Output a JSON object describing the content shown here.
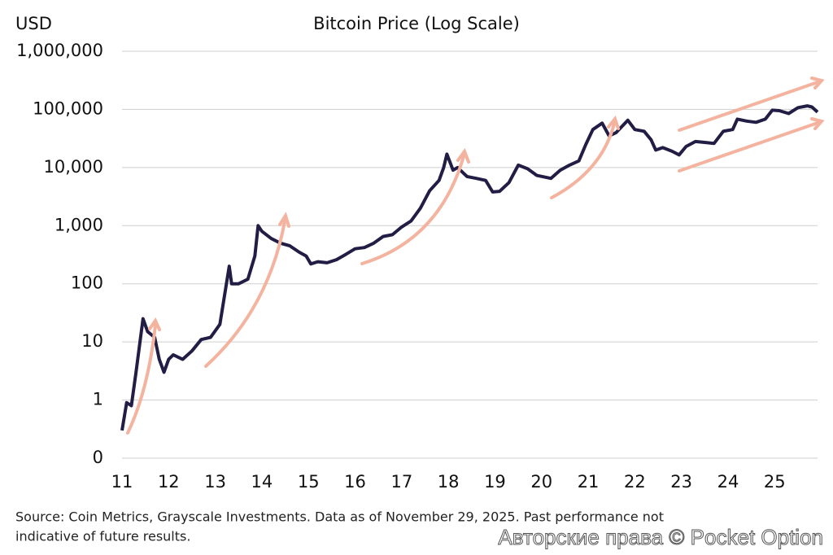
{
  "chart_data": {
    "type": "line",
    "title": "Bitcoin Price (Log Scale)",
    "y_label": "USD",
    "log_y": true,
    "grid": true,
    "xlim": [
      11,
      25.92
    ],
    "xticks": [
      11,
      12,
      13,
      14,
      15,
      16,
      17,
      18,
      19,
      20,
      21,
      22,
      23,
      24,
      25
    ],
    "ylim": [
      0.1,
      1000000
    ],
    "yticks": [
      {
        "value": 0.1,
        "label": "0"
      },
      1,
      10,
      100,
      {
        "value": 1000,
        "label": "1,000"
      },
      {
        "value": 10000,
        "label": "10,000"
      },
      {
        "value": 100000,
        "label": "100,000"
      },
      {
        "value": 1000000,
        "label": "1,000,000"
      }
    ],
    "series": [
      {
        "name": "Bitcoin Price",
        "color": "#221d45",
        "x": [
          11.0,
          11.1,
          11.2,
          11.3,
          11.45,
          11.55,
          11.7,
          11.8,
          11.9,
          12.0,
          12.1,
          12.3,
          12.5,
          12.7,
          12.9,
          13.1,
          13.3,
          13.35,
          13.5,
          13.7,
          13.85,
          13.92,
          14.0,
          14.2,
          14.4,
          14.6,
          14.8,
          14.95,
          15.05,
          15.2,
          15.4,
          15.6,
          15.8,
          16.0,
          16.2,
          16.4,
          16.6,
          16.8,
          17.0,
          17.2,
          17.4,
          17.6,
          17.8,
          17.9,
          17.97,
          18.1,
          18.2,
          18.4,
          18.6,
          18.8,
          18.95,
          19.1,
          19.3,
          19.5,
          19.7,
          19.9,
          20.2,
          20.4,
          20.6,
          20.8,
          20.95,
          21.1,
          21.3,
          21.45,
          21.6,
          21.85,
          22.0,
          22.2,
          22.35,
          22.45,
          22.6,
          22.8,
          22.95,
          23.1,
          23.3,
          23.5,
          23.7,
          23.9,
          24.1,
          24.2,
          24.4,
          24.6,
          24.8,
          24.95,
          25.1,
          25.3,
          25.5,
          25.7,
          25.8,
          25.92
        ],
        "values": [
          0.3,
          0.9,
          0.8,
          3,
          25,
          15,
          12,
          5,
          3,
          5,
          6,
          5,
          7,
          11,
          12,
          20,
          200,
          100,
          100,
          120,
          300,
          1000,
          800,
          600,
          500,
          450,
          350,
          300,
          220,
          240,
          230,
          260,
          320,
          400,
          420,
          500,
          650,
          700,
          950,
          1200,
          2000,
          4000,
          6000,
          10000,
          17000,
          9000,
          10000,
          7000,
          6500,
          6000,
          3800,
          3900,
          5500,
          11000,
          9500,
          7300,
          6500,
          9000,
          11000,
          13000,
          25000,
          45000,
          58000,
          35000,
          40000,
          65000,
          45000,
          42000,
          30000,
          20000,
          22000,
          19000,
          16500,
          23000,
          28000,
          27000,
          26000,
          42000,
          45000,
          68000,
          63000,
          60000,
          68000,
          97000,
          95000,
          85000,
          107000,
          115000,
          110000,
          90000
        ]
      }
    ],
    "source": "Source: Coin Metrics, Grayscale Investments. Data as of November 29, 2025. Past performance not",
    "source_line2": "indicative of future results.",
    "watermark": "Авторские права © Pocket Option"
  }
}
